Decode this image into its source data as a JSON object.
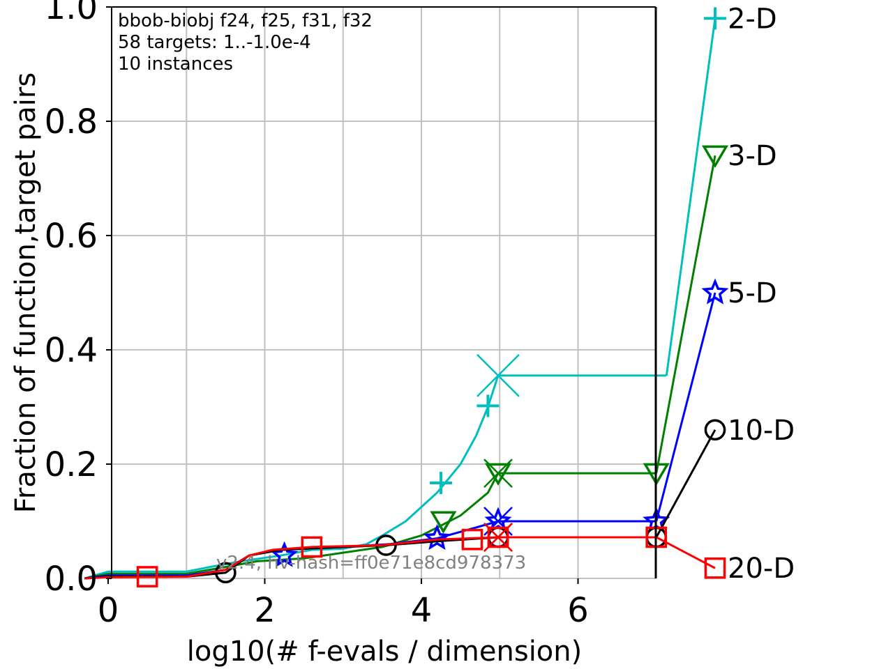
{
  "chart_data": {
    "type": "line",
    "title": "",
    "xlabel": "log10(# f-evals / dimension)",
    "ylabel": "Fraction of function,target pairs",
    "xlim": [
      -0.3,
      7.2
    ],
    "ylim": [
      0.0,
      1.0
    ],
    "grid": true,
    "x_ticks": [
      "0",
      "2",
      "4",
      "6"
    ],
    "y_ticks": [
      "0.0",
      "0.2",
      "0.4",
      "0.6",
      "0.8",
      "1.0"
    ],
    "annotation_lines": [
      "bbob-biobj f24, f25, f31, f32",
      "58 targets: 1..-1.0e-4",
      "10 instances"
    ],
    "hash_text": "v2.4, hv-hash=ff0e71e8cd978373",
    "series": [
      {
        "name": "2-D",
        "color": "#00bfbf",
        "marker": "plus",
        "points": [
          [
            -0.3,
            0.0
          ],
          [
            0.0,
            0.012
          ],
          [
            1.0,
            0.012
          ],
          [
            1.3,
            0.02
          ],
          [
            1.7,
            0.03
          ],
          [
            2.2,
            0.04
          ],
          [
            2.6,
            0.05
          ],
          [
            3.0,
            0.052
          ],
          [
            3.3,
            0.06
          ],
          [
            3.5,
            0.075
          ],
          [
            3.8,
            0.1
          ],
          [
            4.2,
            0.15
          ],
          [
            4.5,
            0.2
          ],
          [
            4.7,
            0.25
          ],
          [
            4.85,
            0.3
          ],
          [
            4.98,
            0.355
          ],
          [
            7.13,
            0.355
          ]
        ],
        "markers": [
          [
            4.25,
            0.167
          ],
          [
            4.85,
            0.302
          ]
        ],
        "end_marker": [
          4.98,
          0.355
        ],
        "final_value": 0.98
      },
      {
        "name": "3-D",
        "color": "#008000",
        "marker": "triangle-down",
        "points": [
          [
            -0.3,
            0.0
          ],
          [
            0.0,
            0.008
          ],
          [
            1.0,
            0.008
          ],
          [
            1.5,
            0.02
          ],
          [
            1.9,
            0.03
          ],
          [
            2.5,
            0.035
          ],
          [
            3.0,
            0.045
          ],
          [
            3.5,
            0.055
          ],
          [
            4.0,
            0.075
          ],
          [
            4.5,
            0.11
          ],
          [
            4.85,
            0.15
          ],
          [
            4.98,
            0.184
          ],
          [
            7.0,
            0.184
          ]
        ],
        "markers": [
          [
            4.28,
            0.1
          ],
          [
            4.98,
            0.184
          ],
          [
            7.0,
            0.184
          ]
        ],
        "end_marker": [
          4.98,
          0.184
        ],
        "final_value": 0.74
      },
      {
        "name": "5-D",
        "color": "#0000ff",
        "marker": "star",
        "points": [
          [
            -0.3,
            0.0
          ],
          [
            0.0,
            0.005
          ],
          [
            1.0,
            0.005
          ],
          [
            1.5,
            0.015
          ],
          [
            1.8,
            0.04
          ],
          [
            2.2,
            0.05
          ],
          [
            3.0,
            0.055
          ],
          [
            3.6,
            0.06
          ],
          [
            4.2,
            0.07
          ],
          [
            4.98,
            0.1
          ],
          [
            7.0,
            0.1
          ]
        ],
        "markers": [
          [
            2.25,
            0.04
          ],
          [
            4.2,
            0.07
          ],
          [
            4.98,
            0.1
          ],
          [
            7.0,
            0.1
          ]
        ],
        "end_marker": [
          4.98,
          0.1
        ],
        "final_value": 0.5
      },
      {
        "name": "10-D",
        "color": "#000000",
        "marker": "circle",
        "points": [
          [
            -0.3,
            0.0
          ],
          [
            0.0,
            0.003
          ],
          [
            1.0,
            0.003
          ],
          [
            1.5,
            0.01
          ],
          [
            1.8,
            0.04
          ],
          [
            2.2,
            0.05
          ],
          [
            3.0,
            0.055
          ],
          [
            3.55,
            0.058
          ],
          [
            4.2,
            0.065
          ],
          [
            4.98,
            0.072
          ],
          [
            7.0,
            0.072
          ]
        ],
        "markers": [
          [
            1.5,
            0.01
          ],
          [
            3.55,
            0.058
          ],
          [
            4.98,
            0.072
          ],
          [
            7.0,
            0.072
          ]
        ],
        "end_marker": [
          4.98,
          0.072
        ],
        "final_value": 0.26
      },
      {
        "name": "20-D",
        "color": "#ff0000",
        "marker": "square",
        "points": [
          [
            -0.3,
            0.0
          ],
          [
            0.0,
            0.002
          ],
          [
            1.0,
            0.003
          ],
          [
            1.5,
            0.015
          ],
          [
            1.8,
            0.04
          ],
          [
            2.1,
            0.05
          ],
          [
            2.6,
            0.055
          ],
          [
            3.5,
            0.058
          ],
          [
            4.2,
            0.068
          ],
          [
            4.98,
            0.072
          ],
          [
            7.0,
            0.072
          ]
        ],
        "markers": [
          [
            0.5,
            0.003
          ],
          [
            2.6,
            0.055
          ],
          [
            4.65,
            0.068
          ],
          [
            4.98,
            0.072
          ],
          [
            7.0,
            0.072
          ]
        ],
        "end_marker": [
          4.98,
          0.072
        ],
        "final_value": 0.018
      }
    ]
  }
}
